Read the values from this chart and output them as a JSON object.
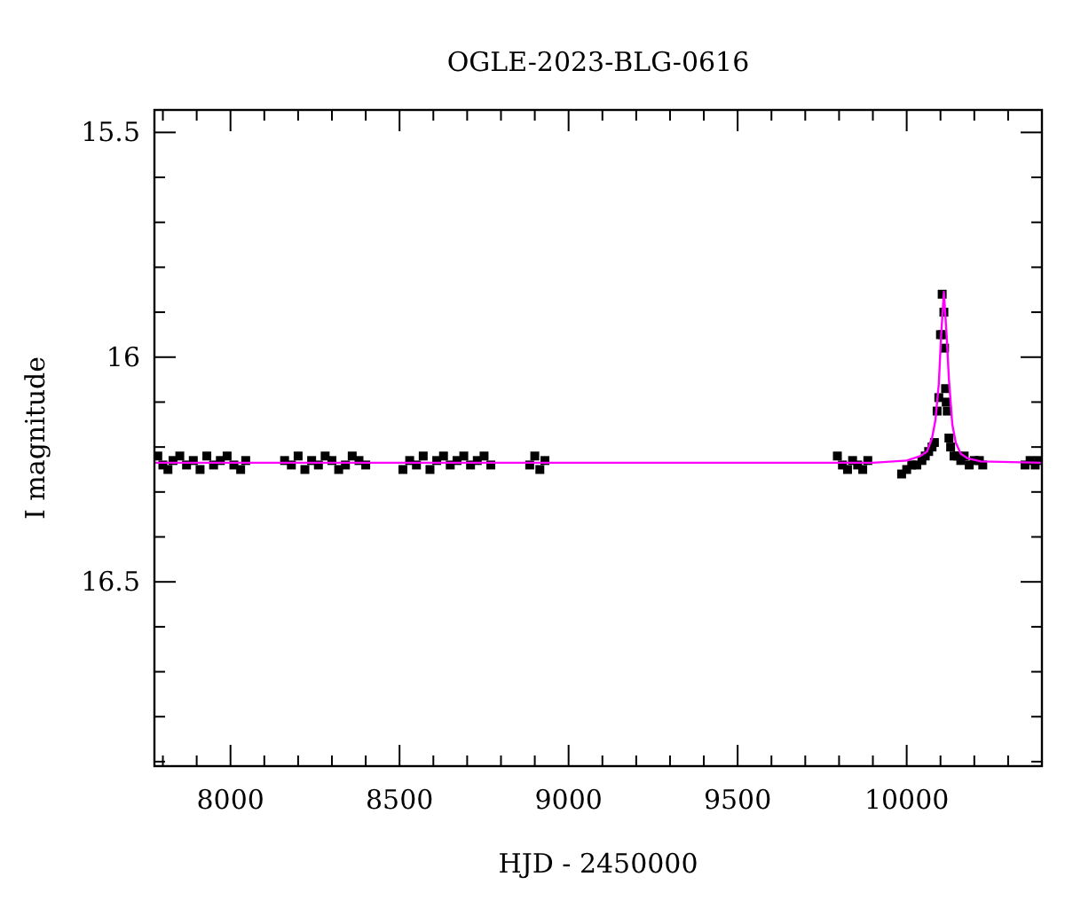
{
  "chart_data": {
    "type": "scatter",
    "title": "OGLE-2023-BLG-0616",
    "xlabel": "HJD - 2450000",
    "ylabel": "I magnitude",
    "xlim": [
      7775,
      10400
    ],
    "ylim": [
      16.91,
      15.45
    ],
    "xticks": [
      {
        "value": 7800,
        "label": null
      },
      {
        "value": 7900,
        "label": null
      },
      8000,
      {
        "value": 8100,
        "label": null
      },
      {
        "value": 8200,
        "label": null
      },
      {
        "value": 8300,
        "label": null
      },
      {
        "value": 8400,
        "label": null
      },
      8500,
      {
        "value": 8600,
        "label": null
      },
      {
        "value": 8700,
        "label": null
      },
      {
        "value": 8800,
        "label": null
      },
      {
        "value": 8900,
        "label": null
      },
      9000,
      {
        "value": 9100,
        "label": null
      },
      {
        "value": 9200,
        "label": null
      },
      {
        "value": 9300,
        "label": null
      },
      {
        "value": 9400,
        "label": null
      },
      9500,
      {
        "value": 9600,
        "label": null
      },
      {
        "value": 9700,
        "label": null
      },
      {
        "value": 9800,
        "label": null
      },
      {
        "value": 9900,
        "label": null
      },
      10000,
      {
        "value": 10100,
        "label": null
      },
      {
        "value": 10200,
        "label": null
      },
      {
        "value": 10300,
        "label": null
      }
    ],
    "yticks": [
      15.5,
      {
        "value": 15.6,
        "label": null
      },
      {
        "value": 15.7,
        "label": null
      },
      {
        "value": 15.8,
        "label": null
      },
      {
        "value": 15.9,
        "label": null
      },
      16,
      {
        "value": 16.1,
        "label": null
      },
      {
        "value": 16.2,
        "label": null
      },
      {
        "value": 16.3,
        "label": null
      },
      {
        "value": 16.4,
        "label": null
      },
      16.5,
      {
        "value": 16.6,
        "label": null
      },
      {
        "value": 16.7,
        "label": null
      },
      {
        "value": 16.8,
        "label": null
      },
      {
        "value": 16.9,
        "label": null
      }
    ],
    "grid": false,
    "series": [
      {
        "marker": "square",
        "color": "#000000",
        "x": [
          7785,
          7800,
          7815,
          7830,
          7850,
          7870,
          7890,
          7910,
          7930,
          7950,
          7970,
          7990,
          8010,
          8030,
          8045,
          8160,
          8180,
          8200,
          8220,
          8240,
          8260,
          8280,
          8300,
          8320,
          8340,
          8360,
          8380,
          8400,
          8510,
          8530,
          8550,
          8570,
          8590,
          8610,
          8630,
          8650,
          8670,
          8690,
          8710,
          8730,
          8750,
          8770,
          8885,
          8900,
          8915,
          8930,
          9795,
          9810,
          9825,
          9840,
          9855,
          9870,
          9885,
          9985,
          10000,
          10015,
          10030,
          10045,
          10055,
          10065,
          10075,
          10082,
          10090,
          10095,
          10100,
          10105,
          10106,
          10110,
          10112,
          10115,
          10117,
          10120,
          10125,
          10130,
          10140,
          10150,
          10160,
          10170,
          10185,
          10200,
          10215,
          10225,
          10350,
          10365,
          10380,
          10390
        ],
        "values": [
          16.22,
          16.24,
          16.25,
          16.23,
          16.22,
          16.24,
          16.23,
          16.25,
          16.22,
          16.24,
          16.23,
          16.22,
          16.24,
          16.25,
          16.23,
          16.23,
          16.24,
          16.22,
          16.25,
          16.23,
          16.24,
          16.22,
          16.23,
          16.25,
          16.24,
          16.22,
          16.23,
          16.24,
          16.25,
          16.23,
          16.24,
          16.22,
          16.25,
          16.23,
          16.22,
          16.24,
          16.23,
          16.22,
          16.24,
          16.23,
          16.22,
          16.24,
          16.24,
          16.22,
          16.25,
          16.23,
          16.22,
          16.24,
          16.25,
          16.23,
          16.24,
          16.25,
          16.23,
          16.26,
          16.25,
          16.24,
          16.24,
          16.23,
          16.22,
          16.21,
          16.2,
          16.19,
          16.12,
          16.09,
          15.95,
          15.86,
          15.95,
          15.9,
          15.98,
          16.07,
          16.1,
          16.12,
          16.18,
          16.2,
          16.22,
          16.22,
          16.23,
          16.22,
          16.24,
          16.23,
          16.23,
          16.24,
          16.24,
          16.23,
          16.24,
          16.23
        ]
      },
      {
        "type": "line",
        "color": "#ff00ff",
        "x": [
          7775,
          9900,
          10000,
          10040,
          10060,
          10075,
          10085,
          10095,
          10102,
          10110,
          10118,
          10125,
          10135,
          10145,
          10160,
          10180,
          10220,
          10400
        ],
        "values": [
          16.235,
          16.235,
          16.23,
          16.22,
          16.21,
          16.18,
          16.14,
          16.06,
          15.95,
          15.855,
          15.95,
          16.05,
          16.15,
          16.19,
          16.215,
          16.225,
          16.232,
          16.235
        ]
      }
    ]
  }
}
